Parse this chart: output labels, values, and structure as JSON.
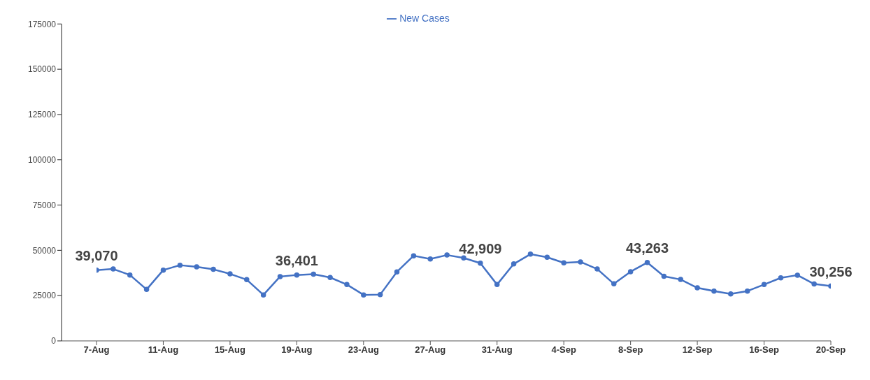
{
  "chart_data": {
    "type": "line",
    "categories": [
      "7-Aug",
      null,
      null,
      null,
      "11-Aug",
      null,
      null,
      null,
      "15-Aug",
      null,
      null,
      null,
      "19-Aug",
      null,
      null,
      null,
      "23-Aug",
      null,
      null,
      null,
      "27-Aug",
      null,
      null,
      null,
      "31-Aug",
      null,
      null,
      null,
      "4-Sep",
      null,
      null,
      null,
      "8-Sep",
      null,
      null,
      null,
      "12-Sep",
      null,
      null,
      null,
      "16-Sep",
      null,
      null,
      null,
      "20-Sep"
    ],
    "series": [
      {
        "name": "New Cases",
        "color": "#4472c4",
        "values": [
          39070,
          39700,
          36400,
          28400,
          39100,
          41800,
          40900,
          39500,
          37000,
          33800,
          25400,
          35500,
          36401,
          36800,
          35000,
          31100,
          25400,
          25600,
          38100,
          47000,
          45200,
          47400,
          45800,
          42909,
          31100,
          42500,
          47900,
          46200,
          43100,
          43600,
          39700,
          31500,
          38200,
          43263,
          35700,
          33900,
          29300,
          27500,
          25900,
          27500,
          31100,
          34800,
          36300,
          31400,
          30256
        ],
        "value_labels": [
          "39,070",
          null,
          null,
          null,
          null,
          null,
          null,
          null,
          null,
          null,
          null,
          null,
          "36,401",
          null,
          null,
          null,
          null,
          null,
          null,
          null,
          null,
          null,
          null,
          "42,909",
          null,
          null,
          null,
          null,
          null,
          null,
          null,
          null,
          null,
          "43,263",
          null,
          null,
          null,
          null,
          null,
          null,
          null,
          null,
          null,
          null,
          "30,256"
        ]
      }
    ],
    "ylim": [
      0,
      175000
    ],
    "yticks": [
      0,
      25000,
      50000,
      75000,
      100000,
      125000,
      150000,
      175000
    ],
    "grid": false,
    "legend": "top",
    "marker": "circle",
    "line_style": "solid"
  }
}
